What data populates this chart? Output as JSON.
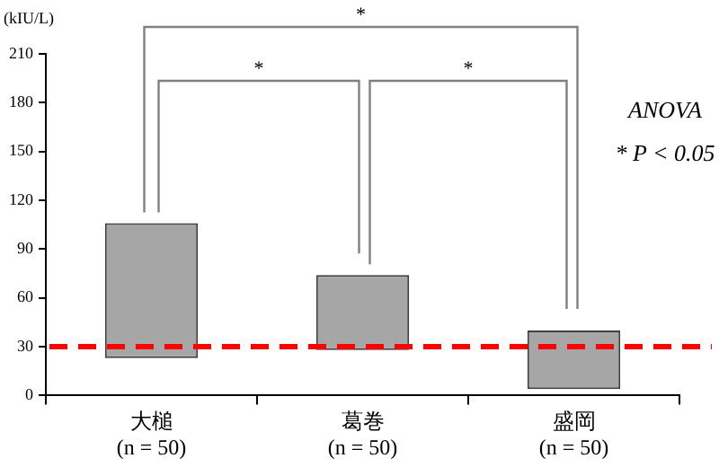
{
  "chart_data": {
    "type": "bar",
    "ylabel": "(kIU/L)",
    "categories": [
      "大槌\n(n = 50)",
      "葛巻\n(n = 50)",
      "盛岡\n(n = 50)"
    ],
    "base": [
      23,
      28,
      4
    ],
    "values": [
      83,
      46,
      36
    ],
    "color": "#a6a6a6",
    "ylim": [
      0,
      210
    ],
    "yticks": [
      0,
      30,
      60,
      90,
      120,
      150,
      180,
      210
    ],
    "grid": false,
    "legend": false,
    "ref_lines": [
      {
        "axis": "y",
        "value": 30,
        "color": "#ff0000",
        "line_style": "dashed"
      }
    ],
    "annotations": [
      "*",
      "*",
      "*",
      "ANOVA",
      "* P < 0.05"
    ]
  }
}
